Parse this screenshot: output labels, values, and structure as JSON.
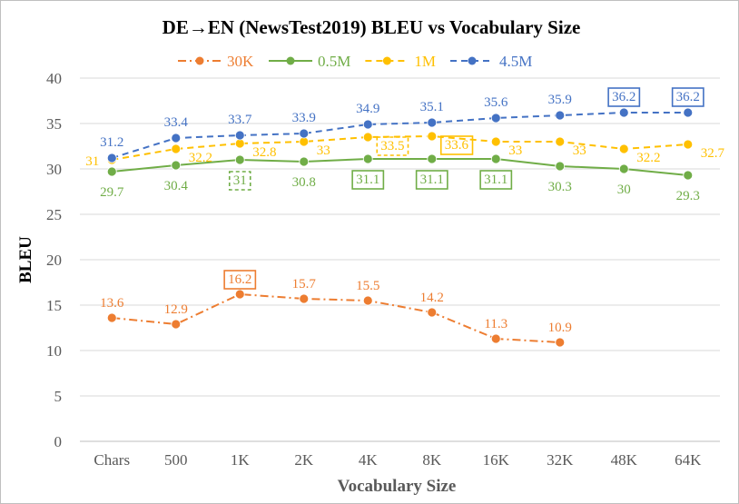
{
  "chart_data": {
    "type": "line",
    "title": "DE→EN (NewsTest2019) BLEU vs Vocabulary Size",
    "xlabel": "Vocabulary Size",
    "ylabel": "BLEU",
    "ylim": [
      0,
      40
    ],
    "ytick_step": 5,
    "yticks": [
      "0",
      "5",
      "10",
      "15",
      "20",
      "25",
      "30",
      "35",
      "40"
    ],
    "grid": true,
    "legend_position": "top",
    "categories": [
      "Chars",
      "500",
      "1K",
      "2K",
      "4K",
      "8K",
      "16K",
      "32K",
      "48K",
      "64K"
    ],
    "series": [
      {
        "name": "30K",
        "color": "#ed7d31",
        "dash": "dash-dot",
        "values": [
          13.6,
          12.9,
          16.2,
          15.7,
          15.5,
          14.2,
          11.3,
          10.9,
          null,
          null
        ],
        "labels": [
          "13.6",
          "12.9",
          "16.2",
          "15.7",
          "15.5",
          "14.2",
          "11.3",
          "10.9",
          null,
          null
        ],
        "boxed": [
          2
        ]
      },
      {
        "name": "0.5M",
        "color": "#70ad47",
        "dash": "solid",
        "values": [
          29.7,
          30.4,
          31,
          30.8,
          31.1,
          31.1,
          31.1,
          30.3,
          30,
          29.3
        ],
        "labels": [
          "29.7",
          "30.4",
          "31",
          "30.8",
          "31.1",
          "31.1",
          "31.1",
          "30.3",
          "30",
          "29.3"
        ],
        "boxed": [
          4,
          5,
          6
        ],
        "dashed_boxed": [
          2
        ]
      },
      {
        "name": "1M",
        "color": "#ffc000",
        "dash": "dashed",
        "values": [
          31,
          32.2,
          32.8,
          33,
          33.5,
          33.6,
          33,
          33,
          32.2,
          32.7
        ],
        "labels": [
          "31",
          "32.2",
          "32.8",
          "33",
          "33.5",
          "33.6",
          "33",
          "33",
          "32.2",
          "32.7"
        ],
        "boxed": [
          5
        ],
        "dashed_boxed": [
          4
        ]
      },
      {
        "name": "4.5M",
        "color": "#4472c4",
        "dash": "dashed",
        "values": [
          31.2,
          33.4,
          33.7,
          33.9,
          34.9,
          35.1,
          35.6,
          35.9,
          36.2,
          36.2
        ],
        "labels": [
          "31.2",
          "33.4",
          "33.7",
          "33.9",
          "34.9",
          "35.1",
          "35.6",
          "35.9",
          "36.2",
          "36.2"
        ],
        "boxed": [
          8,
          9
        ]
      }
    ]
  }
}
